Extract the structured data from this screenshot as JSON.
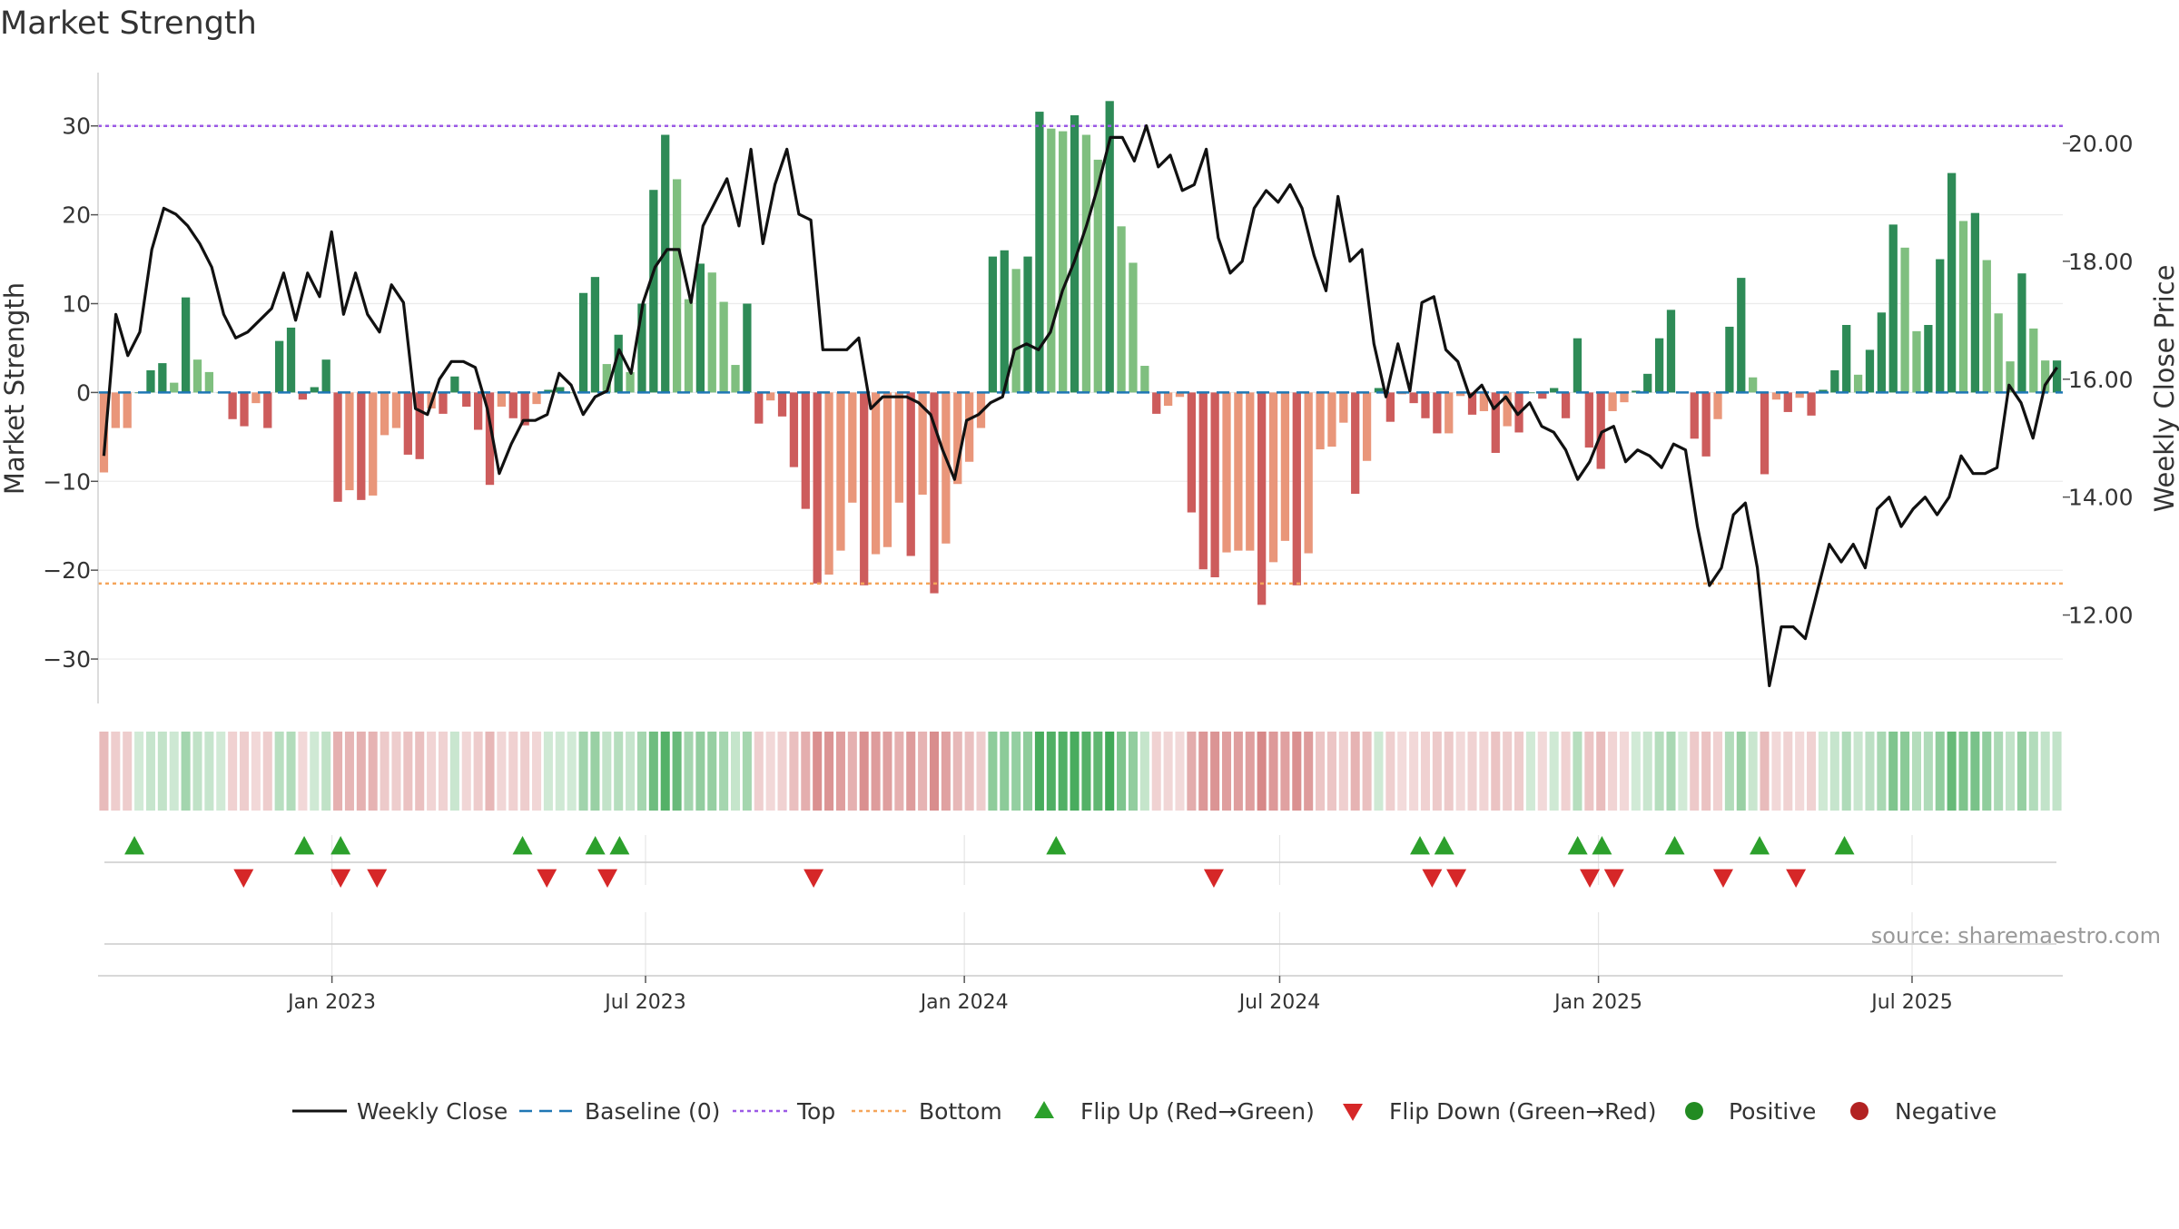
{
  "chart_data": {
    "type": "bar",
    "title": "Market Strength",
    "ylabel_left": "Market Strength",
    "ylabel_right": "Weekly Close Price",
    "ylim_left": [
      -35,
      36
    ],
    "ylim_right": [
      10.5,
      21.2
    ],
    "yticks_left": [
      30,
      20,
      10,
      0,
      -10,
      -20,
      -30
    ],
    "yticks_left_labels": [
      "30",
      "20",
      "10",
      "0",
      "−10",
      "−20",
      "−30"
    ],
    "yticks_right": [
      20,
      18,
      16,
      14,
      12
    ],
    "yticks_right_labels": [
      "20.00",
      "18.00",
      "16.00",
      "14.00",
      "12.00"
    ],
    "x_start": "2022-08-19",
    "x_end": "2025-09-26",
    "xticks": [
      {
        "date": "2023-01-01",
        "label": "Jan 2023"
      },
      {
        "date": "2023-07-01",
        "label": "Jul 2023"
      },
      {
        "date": "2024-01-01",
        "label": "Jan 2024"
      },
      {
        "date": "2024-07-01",
        "label": "Jul 2024"
      },
      {
        "date": "2025-01-01",
        "label": "Jan 2025"
      },
      {
        "date": "2025-07-01",
        "label": "Jul 2025"
      }
    ],
    "top_line": 30,
    "bottom_line": -21.5,
    "baseline": 0,
    "grid": true,
    "source": "source: sharemaestro.com",
    "colors": {
      "pos_strong": "#2e8b57",
      "pos_light": "#7fbf7f",
      "neg_strong": "#cd5c5c",
      "neg_light": "#e9967a",
      "price_line": "#111111",
      "baseline": "#1f77b4",
      "top": "#9b59e6",
      "bottom": "#f5a55a",
      "flip_up": "#2ca02c",
      "flip_down": "#d62728",
      "positive": "#228b22",
      "negative": "#b22222"
    },
    "strength": [
      -9,
      -4,
      -4,
      0,
      2.5,
      3.3,
      1.1,
      10.7,
      3.7,
      2.3,
      0,
      -3,
      -3.8,
      -1.2,
      -4,
      5.8,
      7.3,
      -0.8,
      0.6,
      3.7,
      -12.3,
      -11,
      -12.1,
      -11.6,
      -4.8,
      -4,
      -7,
      -7.5,
      -1.8,
      -2.4,
      1.8,
      -1.6,
      -4.2,
      -10.4,
      -1.6,
      -2.9,
      -3.7,
      -1.3,
      0.3,
      0.6,
      0,
      11.2,
      13,
      3.2,
      6.5,
      2.3,
      10,
      22.8,
      29,
      24,
      10.5,
      14.5,
      13.5,
      10.2,
      3.1,
      10,
      -3.5,
      -0.9,
      -2.7,
      -8.4,
      -13.1,
      -21.5,
      -20.5,
      -17.8,
      -12.4,
      -21.7,
      -18.2,
      -17.4,
      -12.4,
      -18.4,
      -11.5,
      -22.6,
      -17,
      -10.3,
      -7.8,
      -4,
      15.3,
      16,
      13.9,
      15.3,
      31.6,
      29.7,
      29.4,
      31.2,
      29,
      26.2,
      32.8,
      18.7,
      14.6,
      3,
      -2.4,
      -1.5,
      -0.5,
      -13.5,
      -19.9,
      -20.8,
      -18,
      -17.8,
      -17.8,
      -23.9,
      -19.1,
      -16.7,
      -21.7,
      -18.1,
      -6.4,
      -6.1,
      -3.4,
      -11.4,
      -7.7,
      0.5,
      -3.3,
      -0.2,
      -1.2,
      -2.9,
      -4.6,
      -4.6,
      -0.4,
      -2.5,
      -2.1,
      -6.8,
      -3.8,
      -4.5,
      0,
      -0.7,
      0.5,
      -2.9,
      6.1,
      -6.2,
      -8.6,
      -2.1,
      -1.1,
      0.2,
      2.1,
      6.1,
      9.3,
      0,
      -5.2,
      -7.2,
      -3,
      7.4,
      12.9,
      1.7,
      -9.2,
      -0.8,
      -2.2,
      -0.6,
      -2.6,
      0.3,
      2.5,
      7.6,
      2,
      4.8,
      9,
      18.9,
      16.3,
      6.9,
      7.6,
      15,
      24.7,
      19.3,
      20.2,
      14.9,
      8.9,
      3.5,
      13.4,
      7.2,
      3.6,
      3.6
    ],
    "weekly_close": [
      14.7,
      17.1,
      16.4,
      16.8,
      18.2,
      18.9,
      18.8,
      18.6,
      18.3,
      17.9,
      17.1,
      16.7,
      16.8,
      17.0,
      17.2,
      17.8,
      17.0,
      17.8,
      17.4,
      18.5,
      17.1,
      17.8,
      17.1,
      16.8,
      17.6,
      17.3,
      15.5,
      15.4,
      16.0,
      16.3,
      16.3,
      16.2,
      15.5,
      14.4,
      14.9,
      15.3,
      15.3,
      15.4,
      16.1,
      15.9,
      15.4,
      15.7,
      15.8,
      16.5,
      16.1,
      17.3,
      17.9,
      18.2,
      18.2,
      17.3,
      18.6,
      19.0,
      19.4,
      18.6,
      19.9,
      18.3,
      19.3,
      19.9,
      18.8,
      18.7,
      16.5,
      16.5,
      16.5,
      16.7,
      15.5,
      15.7,
      15.7,
      15.7,
      15.6,
      15.4,
      14.8,
      14.3,
      15.3,
      15.4,
      15.6,
      15.7,
      16.5,
      16.6,
      16.5,
      16.8,
      17.5,
      18.0,
      18.6,
      19.3,
      20.1,
      20.1,
      19.7,
      20.3,
      19.6,
      19.8,
      19.2,
      19.3,
      19.9,
      18.4,
      17.8,
      18.0,
      18.9,
      19.2,
      19.0,
      19.3,
      18.9,
      18.1,
      17.5,
      19.1,
      18.0,
      18.2,
      16.6,
      15.7,
      16.6,
      15.8,
      17.3,
      17.4,
      16.5,
      16.3,
      15.7,
      15.9,
      15.5,
      15.7,
      15.4,
      15.6,
      15.2,
      15.1,
      14.8,
      14.3,
      14.6,
      15.1,
      15.2,
      14.6,
      14.8,
      14.7,
      14.5,
      14.9,
      14.8,
      13.5,
      12.5,
      12.8,
      13.7,
      13.9,
      12.8,
      10.8,
      11.8,
      11.8,
      11.6,
      12.4,
      13.2,
      12.9,
      13.2,
      12.8,
      13.8,
      14.0,
      13.5,
      13.8,
      14.0,
      13.7,
      14.0,
      14.7,
      14.4,
      14.4,
      14.5,
      15.9,
      15.6,
      15.0,
      15.9,
      16.2
    ],
    "flip_up": [
      "2022-09-09",
      "2022-12-16",
      "2023-01-06",
      "2023-04-21",
      "2023-06-02",
      "2023-06-16",
      "2024-02-23",
      "2024-09-20",
      "2024-10-04",
      "2024-12-20",
      "2025-01-03",
      "2025-02-14",
      "2025-04-04",
      "2025-05-23"
    ],
    "flip_down": [
      "2022-11-11",
      "2023-01-06",
      "2023-01-27",
      "2023-05-05",
      "2023-06-09",
      "2023-10-06",
      "2024-05-24",
      "2024-09-27",
      "2024-10-11",
      "2024-12-27",
      "2025-01-10",
      "2025-03-14",
      "2025-04-25"
    ],
    "legend": [
      {
        "key": "weekly_close",
        "label": "Weekly Close",
        "kind": "line-solid"
      },
      {
        "key": "baseline",
        "label": "Baseline (0)",
        "kind": "line-dashed"
      },
      {
        "key": "top",
        "label": "Top",
        "kind": "line-dotted"
      },
      {
        "key": "bottom",
        "label": "Bottom",
        "kind": "line-dotted"
      },
      {
        "key": "flip_up",
        "label": "Flip Up (Red→Green)",
        "kind": "triangle-up"
      },
      {
        "key": "flip_down",
        "label": "Flip Down (Green→Red)",
        "kind": "triangle-down"
      },
      {
        "key": "positive",
        "label": "Positive",
        "kind": "dot"
      },
      {
        "key": "negative",
        "label": "Negative",
        "kind": "dot"
      }
    ]
  }
}
